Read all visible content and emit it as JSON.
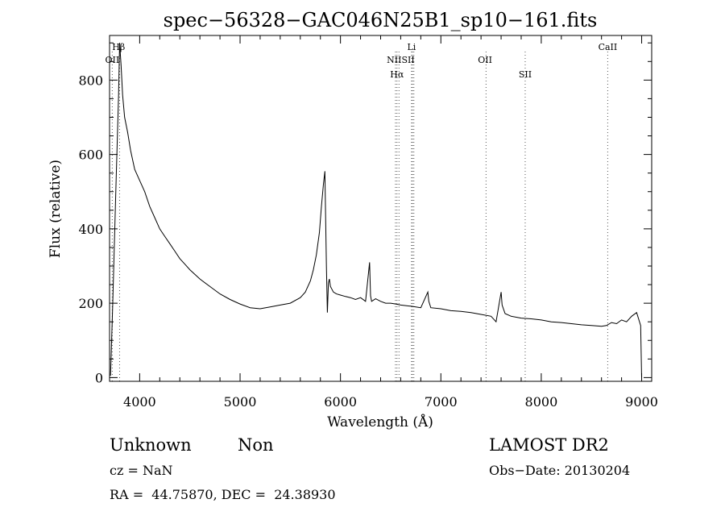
{
  "chart_data": {
    "type": "line",
    "title": "spec−56328−GAC046N25B1_sp10−161.fits",
    "xlabel": "Wavelength (Å)",
    "ylabel": "Flux (relative)",
    "xlim": [
      3700,
      9100
    ],
    "ylim": [
      -10,
      920
    ],
    "x_ticks": [
      4000,
      5000,
      6000,
      7000,
      8000,
      9000
    ],
    "x_tick_labels": [
      "4000",
      "5000",
      "6000",
      "7000",
      "8000",
      "9000"
    ],
    "y_ticks": [
      0,
      200,
      400,
      600,
      800
    ],
    "y_tick_labels": [
      "0",
      "200",
      "400",
      "600",
      "800"
    ],
    "grid": false,
    "series": [
      {
        "x": [
          3710,
          3730,
          3760,
          3790,
          3800,
          3815,
          3830,
          3850,
          3880,
          3910,
          3950,
          4000,
          4050,
          4100,
          4150,
          4200,
          4250,
          4300,
          4350,
          4400,
          4450,
          4500,
          4600,
          4700,
          4800,
          4900,
          5000,
          5100,
          5200,
          5300,
          5400,
          5500,
          5600,
          5650,
          5700,
          5730,
          5760,
          5790,
          5810,
          5830,
          5845,
          5860,
          5870,
          5880,
          5890,
          5900,
          5930,
          5960,
          6000,
          6050,
          6100,
          6150,
          6200,
          6250,
          6290,
          6300,
          6310,
          6350,
          6400,
          6450,
          6500,
          6550,
          6600,
          6700,
          6800,
          6870,
          6880,
          6900,
          7000,
          7100,
          7200,
          7300,
          7400,
          7500,
          7550,
          7600,
          7610,
          7640,
          7700,
          7800,
          7900,
          8000,
          8100,
          8200,
          8300,
          8400,
          8500,
          8600,
          8650,
          8700,
          8750,
          8800,
          8850,
          8900,
          8950,
          8990,
          9000
        ],
        "y": [
          5,
          180,
          480,
          760,
          900,
          840,
          760,
          700,
          660,
          610,
          560,
          530,
          500,
          460,
          430,
          400,
          380,
          360,
          340,
          320,
          305,
          290,
          265,
          245,
          225,
          210,
          198,
          188,
          185,
          190,
          195,
          200,
          215,
          230,
          260,
          290,
          330,
          390,
          460,
          520,
          555,
          300,
          175,
          255,
          265,
          245,
          230,
          225,
          222,
          218,
          215,
          210,
          215,
          205,
          310,
          220,
          205,
          212,
          205,
          200,
          200,
          198,
          195,
          192,
          188,
          230,
          205,
          188,
          185,
          180,
          178,
          175,
          170,
          165,
          150,
          230,
          195,
          172,
          165,
          160,
          158,
          155,
          150,
          148,
          145,
          142,
          140,
          138,
          140,
          148,
          145,
          155,
          150,
          165,
          175,
          140,
          0
        ]
      }
    ],
    "lines": [
      {
        "label": "Hβ",
        "x": 3790,
        "label_row": 0
      },
      {
        "label": "OII",
        "x": 3727,
        "label_row": 1
      },
      {
        "label": "Li",
        "x": 6708,
        "label_row": 0
      },
      {
        "label": "NIISII",
        "x": 6600,
        "label_row": 1
      },
      {
        "label": "Hα",
        "x": 6563,
        "label_row": 2
      },
      {
        "label": "OII",
        "x": 7440,
        "label_row": 1
      },
      {
        "label": "SII",
        "x": 7840,
        "label_row": 2
      },
      {
        "label": "CaII",
        "x": 8662,
        "label_row": 0
      }
    ],
    "marker_lines_x": [
      3727,
      3800,
      6548,
      6563,
      6583,
      6708,
      6717,
      6731,
      7450,
      7840,
      8662
    ]
  },
  "info": {
    "obj_type": "Unknown",
    "obj_subclass": "Non",
    "survey": "LAMOST DR2",
    "cz": "cz = NaN",
    "obs_date": "Obs−Date: 20130204",
    "coords": "RA =  44.75870, DEC =  24.38930"
  }
}
